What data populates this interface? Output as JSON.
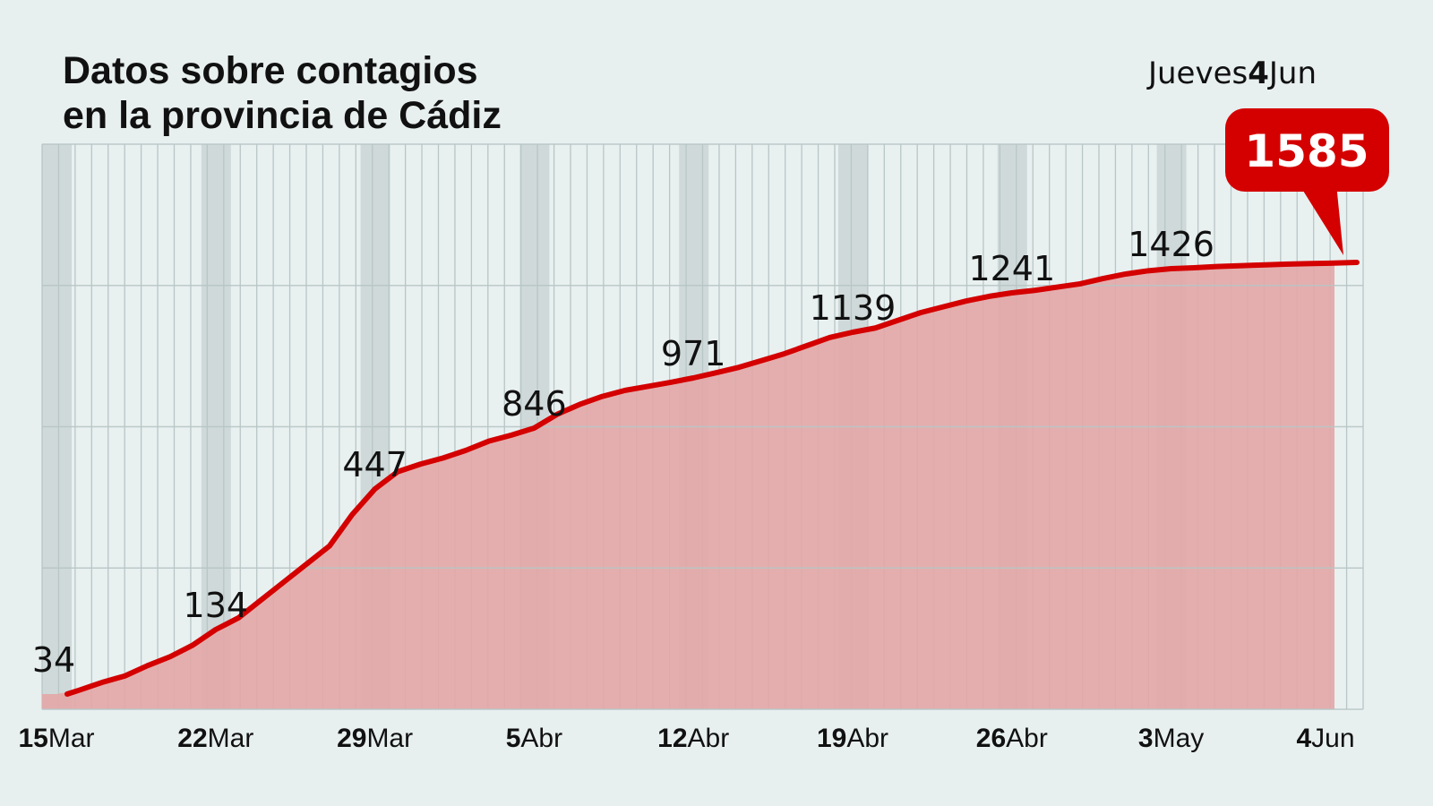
{
  "header": {
    "title_line1": "Datos sobre contagios",
    "title_line2": "en la provincia de Cádiz",
    "date_weekday": "Jueves",
    "date_day": "4",
    "date_month": "Jun"
  },
  "colors": {
    "background": "#e8efef",
    "line": "#d40000",
    "fill": "#e3a6a6",
    "weekend_band": "#cfd9d9",
    "grid": "#b8c6c6",
    "callout": "#d40000"
  },
  "chart_data": {
    "type": "area",
    "title": "Datos sobre contagios en la provincia de Cádiz",
    "xlabel": "",
    "ylabel": "",
    "grid": true,
    "categories": [
      "15Mar",
      "16Mar",
      "17Mar",
      "18Mar",
      "19Mar",
      "20Mar",
      "21Mar",
      "22Mar",
      "23Mar",
      "24Mar",
      "25Mar",
      "26Mar",
      "27Mar",
      "28Mar",
      "29Mar",
      "30Mar",
      "31Mar",
      "1Abr",
      "2Abr",
      "3Abr",
      "4Abr",
      "5Abr",
      "6Abr",
      "7Abr",
      "8Abr",
      "9Abr",
      "10Abr",
      "11Abr",
      "12Abr",
      "13Abr",
      "14Abr",
      "15Abr",
      "16Abr",
      "17Abr",
      "18Abr",
      "19Abr",
      "20Abr",
      "21Abr",
      "22Abr",
      "23Abr",
      "24Abr",
      "25Abr",
      "26Abr",
      "27Abr",
      "28Abr",
      "29Abr",
      "30Abr",
      "1May",
      "2May",
      "3May",
      "4May",
      "5May",
      "6May",
      "7May",
      "8May",
      "9May",
      "10May",
      "4Jun"
    ],
    "values": [
      34,
      40,
      52,
      62,
      78,
      92,
      110,
      134,
      160,
      200,
      240,
      280,
      320,
      390,
      447,
      560,
      610,
      650,
      700,
      760,
      800,
      846,
      880,
      905,
      925,
      940,
      950,
      960,
      971,
      990,
      1010,
      1035,
      1060,
      1090,
      1120,
      1139,
      1150,
      1170,
      1190,
      1205,
      1220,
      1232,
      1241,
      1260,
      1285,
      1310,
      1350,
      1385,
      1410,
      1426,
      1450,
      1480,
      1500,
      1520,
      1540,
      1555,
      1565,
      1585
    ],
    "data_labels": [
      {
        "x": "15Mar",
        "value": 34,
        "text": "34"
      },
      {
        "x": "22Mar",
        "value": 134,
        "text": "134"
      },
      {
        "x": "29Mar",
        "value": 447,
        "text": "447"
      },
      {
        "x": "5Abr",
        "value": 846,
        "text": "846"
      },
      {
        "x": "12Abr",
        "value": 971,
        "text": "971"
      },
      {
        "x": "19Abr",
        "value": 1139,
        "text": "1139"
      },
      {
        "x": "26Abr",
        "value": 1241,
        "text": "1241"
      },
      {
        "x": "3May",
        "value": 1426,
        "text": "1426"
      }
    ],
    "highlight": {
      "x": "4Jun",
      "value": 1585,
      "text": "1585"
    },
    "x_ticks": [
      {
        "x": "15Mar",
        "day": "15",
        "month": "Mar"
      },
      {
        "x": "22Mar",
        "day": "22",
        "month": "Mar"
      },
      {
        "x": "29Mar",
        "day": "29",
        "month": "Mar"
      },
      {
        "x": "5Abr",
        "day": "5",
        "month": "Abr"
      },
      {
        "x": "12Abr",
        "day": "12",
        "month": "Abr"
      },
      {
        "x": "19Abr",
        "day": "19",
        "month": "Abr"
      },
      {
        "x": "26Abr",
        "day": "26",
        "month": "Abr"
      },
      {
        "x": "3May",
        "day": "3",
        "month": "May"
      },
      {
        "x": "4Jun",
        "day": "4",
        "month": "Jun"
      }
    ],
    "ylim": [
      0,
      1800
    ]
  }
}
